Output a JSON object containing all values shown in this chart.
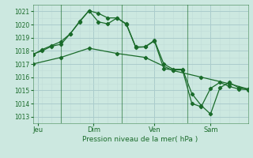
{
  "background_color": "#cce8e0",
  "grid_color_major": "#aacccc",
  "grid_color_minor": "#c0ddd8",
  "line_color": "#1a6b2a",
  "xlabel": "Pression niveau de la mer( hPa )",
  "ylim": [
    1012.5,
    1021.5
  ],
  "yticks": [
    1013,
    1014,
    1015,
    1016,
    1017,
    1018,
    1019,
    1020,
    1021
  ],
  "day_labels": [
    "Jeu",
    "Dim",
    "Ven",
    "Sam"
  ],
  "day_positions": [
    0.5,
    6.5,
    13,
    19
  ],
  "vline_positions": [
    3,
    9.5,
    16.5,
    23.5
  ],
  "series1_x": [
    0,
    1,
    2,
    3,
    4,
    5,
    6,
    7,
    8,
    9,
    10,
    11,
    12,
    13,
    14,
    15,
    16,
    17,
    18,
    19,
    20,
    21,
    22,
    23
  ],
  "series1_y": [
    1017.75,
    1018.0,
    1018.35,
    1018.5,
    1019.3,
    1020.2,
    1021.05,
    1020.2,
    1020.05,
    1020.5,
    1020.05,
    1018.3,
    1018.3,
    1018.8,
    1017.0,
    1016.6,
    1016.6,
    1014.75,
    1013.85,
    1013.2,
    1015.2,
    1015.6,
    1015.2,
    1015.1
  ],
  "series2_x": [
    0,
    1,
    2,
    3,
    4,
    5,
    6,
    7,
    8,
    9,
    10,
    11,
    12,
    13,
    14,
    15,
    16,
    17,
    18,
    19,
    20,
    21,
    22,
    23
  ],
  "series2_y": [
    1017.7,
    1018.1,
    1018.4,
    1018.7,
    1019.3,
    1020.25,
    1021.05,
    1020.85,
    1020.5,
    1020.5,
    1020.0,
    1018.25,
    1018.3,
    1018.75,
    1016.65,
    1016.55,
    1016.55,
    1014.0,
    1013.75,
    1015.15,
    1015.6,
    1015.3,
    1015.1,
    1015.05
  ],
  "series3_x": [
    0,
    3,
    6,
    9,
    12,
    15,
    18,
    21,
    23
  ],
  "series3_y": [
    1017.0,
    1017.5,
    1018.2,
    1017.8,
    1017.5,
    1016.5,
    1016.0,
    1015.5,
    1015.1
  ]
}
